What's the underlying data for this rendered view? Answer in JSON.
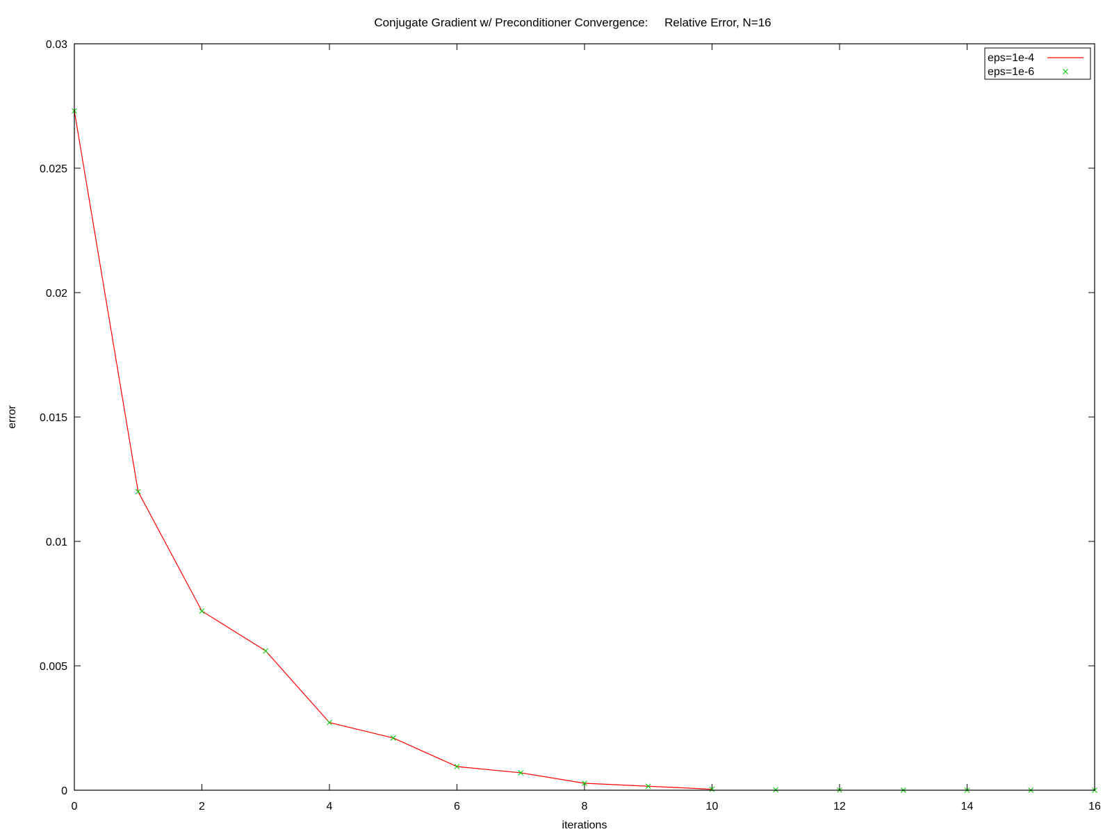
{
  "chart_data": {
    "type": "line",
    "title": "Conjugate Gradient w/ Preconditioner Convergence:     Relative Error, N=16",
    "xlabel": "iterations",
    "ylabel": "error",
    "xlim": [
      0,
      16
    ],
    "ylim": [
      0,
      0.03
    ],
    "xticks": [
      "0",
      "2",
      "4",
      "6",
      "8",
      "10",
      "12",
      "14",
      "16"
    ],
    "yticks": [
      "0",
      "0.005",
      "0.01",
      "0.015",
      "0.02",
      "0.025",
      "0.03"
    ],
    "grid": false,
    "legend_position": "top-right",
    "series": [
      {
        "name": "eps=1e-4",
        "style": "line",
        "color": "#ff0000",
        "x": [
          0,
          1,
          2,
          3,
          4,
          5,
          6,
          7,
          8,
          9,
          10
        ],
        "y": [
          0.0273,
          0.012,
          0.0072,
          0.0056,
          0.00272,
          0.0021,
          0.00095,
          0.0007,
          0.00028,
          0.00016,
          4e-05
        ]
      },
      {
        "name": "eps=1e-6",
        "style": "points",
        "marker": "x",
        "color": "#00cc00",
        "x": [
          0,
          1,
          2,
          3,
          4,
          5,
          6,
          7,
          8,
          9,
          10,
          11,
          12,
          13,
          14,
          15,
          16
        ],
        "y": [
          0.0273,
          0.012,
          0.0072,
          0.0056,
          0.00272,
          0.0021,
          0.00095,
          0.0007,
          0.00028,
          0.00016,
          4e-05,
          1.5e-05,
          6e-06,
          2e-06,
          8e-07,
          3e-07,
          1e-07
        ]
      }
    ]
  }
}
